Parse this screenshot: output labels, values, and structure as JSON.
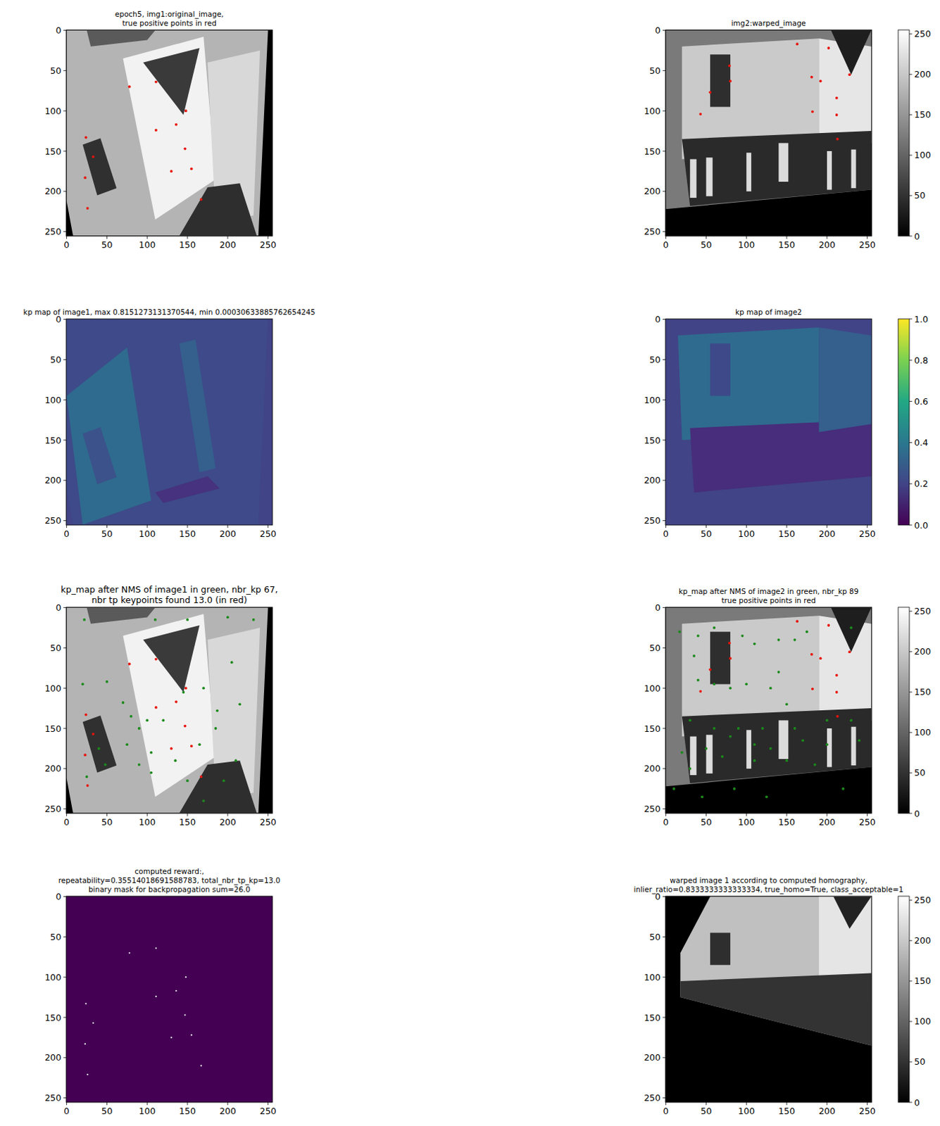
{
  "chart_data": [
    {
      "type": "image",
      "color": "gray",
      "title": [
        "epoch5, img1:original_image,",
        "true positive points in red"
      ],
      "xlim": [
        -0.5,
        255.5
      ],
      "ylim": [
        255.5,
        -0.5
      ],
      "xticks": [
        0,
        50,
        100,
        150,
        200,
        250
      ],
      "yticks": [
        0,
        50,
        100,
        150,
        200,
        250
      ],
      "series": [
        {
          "color": "red",
          "x": [
            78,
            111,
            148,
            111,
            136,
            147,
            24,
            33,
            130,
            155,
            23,
            167,
            26
          ],
          "values": [
            70,
            64,
            100,
            124,
            117,
            147,
            133,
            157,
            175,
            172,
            183,
            210,
            221
          ]
        }
      ]
    },
    {
      "type": "image",
      "color": "gray",
      "title": [
        "img2:warped_image"
      ],
      "xlim": [
        -0.5,
        255.5
      ],
      "ylim": [
        255.5,
        -0.5
      ],
      "xticks": [
        0,
        50,
        100,
        150,
        200,
        250
      ],
      "yticks": [
        0,
        50,
        100,
        150,
        200,
        250
      ],
      "series": [
        {
          "color": "red",
          "x": [
            163,
            202,
            79,
            80,
            55,
            43,
            181,
            192,
            212,
            182,
            212,
            213,
            228
          ],
          "values": [
            17,
            22,
            44,
            63,
            77,
            104,
            58,
            63,
            84,
            101,
            105,
            135,
            55
          ]
        }
      ],
      "colorbar": {
        "range": [
          0,
          255
        ],
        "ticks": [
          0,
          50,
          100,
          150,
          200,
          250
        ],
        "color": "gray"
      }
    },
    {
      "type": "image",
      "color": "viridis",
      "title": [
        "kp map of image1, max 0.8151273131370544, min 0.00030633885762654245"
      ],
      "xlim": [
        -0.5,
        255.5
      ],
      "ylim": [
        255.5,
        -0.5
      ],
      "xticks": [
        0,
        50,
        100,
        150,
        200,
        250
      ],
      "yticks": [
        0,
        50,
        100,
        150,
        200,
        250
      ]
    },
    {
      "type": "image",
      "color": "viridis",
      "title": [
        "kp map of image2"
      ],
      "xlim": [
        -0.5,
        255.5
      ],
      "ylim": [
        255.5,
        -0.5
      ],
      "xticks": [
        0,
        50,
        100,
        150,
        200,
        250
      ],
      "yticks": [
        0,
        50,
        100,
        150,
        200,
        250
      ],
      "colorbar": {
        "range": [
          0,
          1
        ],
        "color": "viridis",
        "ticks": [
          {
            "value": 0,
            "label": "0.0"
          },
          {
            "value": 0.2,
            "label": "0.2"
          },
          {
            "value": 0.4,
            "label": "0.4"
          },
          {
            "value": 0.6,
            "label": "0.6"
          },
          {
            "value": 0.8,
            "label": "0.8"
          },
          {
            "value": 1,
            "label": "1.0"
          }
        ]
      }
    },
    {
      "type": "image",
      "color": "gray",
      "title": [
        "kp_map after NMS of image1 in green, nbr_kp 67,",
        "nbr tp keypoints found 13.0 (in red)"
      ],
      "xlim": [
        -0.5,
        255.5
      ],
      "ylim": [
        255.5,
        -0.5
      ],
      "xticks": [
        0,
        50,
        100,
        150,
        200,
        250
      ],
      "yticks": [
        0,
        50,
        100,
        150,
        200,
        250
      ],
      "series": [
        {
          "color": "green",
          "x": [
            22,
            110,
            150,
            232,
            200,
            205,
            215,
            50,
            70,
            20,
            80,
            100,
            120,
            90,
            105,
            75,
            145,
            170,
            187,
            185,
            165,
            135,
            105,
            40,
            48,
            25,
            90,
            210,
            195,
            170,
            150
          ],
          "values": [
            15,
            15,
            15,
            15,
            12,
            68,
            120,
            92,
            118,
            95,
            135,
            140,
            140,
            150,
            180,
            170,
            105,
            100,
            128,
            150,
            170,
            190,
            205,
            175,
            195,
            210,
            195,
            190,
            215,
            240,
            215
          ]
        },
        {
          "color": "red",
          "x": [
            78,
            111,
            148,
            111,
            136,
            147,
            24,
            33,
            130,
            155,
            23,
            167,
            26
          ],
          "values": [
            70,
            64,
            100,
            124,
            117,
            147,
            133,
            157,
            175,
            172,
            183,
            210,
            221
          ]
        }
      ]
    },
    {
      "type": "image",
      "color": "gray",
      "title": [
        "kp_map after NMS of image2 in green, nbr_kp 89",
        "true positive points in red"
      ],
      "xlim": [
        -0.5,
        255.5
      ],
      "ylim": [
        255.5,
        -0.5
      ],
      "xticks": [
        0,
        50,
        100,
        150,
        200,
        250
      ],
      "yticks": [
        0,
        50,
        100,
        150,
        200,
        250
      ],
      "series": [
        {
          "color": "green",
          "x": [
            17,
            40,
            60,
            95,
            110,
            140,
            160,
            175,
            230,
            35,
            40,
            60,
            80,
            100,
            130,
            140,
            150,
            30,
            60,
            90,
            120,
            160,
            200,
            230,
            20,
            50,
            80,
            110,
            130,
            170,
            200,
            240,
            30,
            70,
            110,
            150,
            185,
            10,
            45,
            85,
            125,
            220
          ],
          "values": [
            30,
            35,
            25,
            35,
            45,
            40,
            40,
            30,
            25,
            60,
            90,
            95,
            100,
            95,
            100,
            80,
            120,
            140,
            150,
            150,
            150,
            150,
            140,
            140,
            180,
            175,
            160,
            170,
            175,
            165,
            170,
            165,
            200,
            185,
            190,
            190,
            195,
            225,
            235,
            225,
            235,
            225
          ]
        },
        {
          "color": "red",
          "x": [
            163,
            202,
            79,
            80,
            55,
            43,
            181,
            192,
            212,
            182,
            212,
            213,
            228
          ],
          "values": [
            17,
            22,
            44,
            63,
            77,
            104,
            58,
            63,
            84,
            101,
            105,
            135,
            55
          ]
        }
      ],
      "colorbar": {
        "range": [
          0,
          255
        ],
        "ticks": [
          0,
          50,
          100,
          150,
          200,
          250
        ],
        "color": "gray"
      }
    },
    {
      "type": "image",
      "color": "viridis",
      "title": [
        "computed reward:,",
        "repeatability=0.35514018691588783, total_nbr_tp_kp=13.0",
        "binary mask for backpropagation sum=26.0"
      ],
      "xlim": [
        -0.5,
        255.5
      ],
      "ylim": [
        255.5,
        -0.5
      ],
      "xticks": [
        0,
        50,
        100,
        150,
        200,
        250
      ],
      "yticks": [
        0,
        50,
        100,
        150,
        200,
        250
      ],
      "series": [
        {
          "color": "white",
          "x": [
            78,
            111,
            148,
            111,
            136,
            147,
            24,
            33,
            130,
            155,
            23,
            167,
            26
          ],
          "values": [
            70,
            64,
            100,
            124,
            117,
            147,
            133,
            157,
            175,
            172,
            183,
            210,
            221
          ]
        }
      ]
    },
    {
      "type": "image",
      "color": "gray",
      "title": [
        "warped image 1 according to computed homography,",
        "inlier_ratio=0.8333333333333334, true_homo=True, class_acceptable=1"
      ],
      "xlim": [
        -0.5,
        255.5
      ],
      "ylim": [
        255.5,
        -0.5
      ],
      "xticks": [
        0,
        50,
        100,
        150,
        200,
        250
      ],
      "yticks": [
        0,
        50,
        100,
        150,
        200,
        250
      ],
      "colorbar": {
        "range": [
          0,
          255
        ],
        "ticks": [
          0,
          50,
          100,
          150,
          200,
          250
        ],
        "color": "gray"
      }
    }
  ]
}
